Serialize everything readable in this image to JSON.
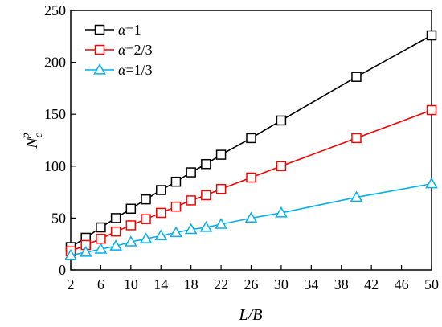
{
  "chart_data": {
    "type": "line",
    "xlabel": "L/B",
    "ylabel": {
      "base": "N",
      "sup": "p",
      "sub": "c"
    },
    "xlim": [
      2,
      50
    ],
    "ylim": [
      0,
      250
    ],
    "xticks": [
      2,
      6,
      10,
      14,
      18,
      22,
      26,
      30,
      34,
      38,
      42,
      46,
      50
    ],
    "yticks": [
      0,
      50,
      100,
      150,
      200,
      250
    ],
    "grid": false,
    "legend_position": "top-left",
    "x": [
      2,
      4,
      6,
      8,
      10,
      12,
      14,
      16,
      18,
      20,
      22,
      26,
      30,
      40,
      50
    ],
    "series": [
      {
        "name_parts": [
          "α",
          "=1"
        ],
        "color": "#000000",
        "marker": "square",
        "values": [
          22,
          31,
          41,
          50,
          59,
          68,
          77,
          85,
          94,
          102,
          111,
          127,
          144,
          186,
          226
        ]
      },
      {
        "name_parts": [
          "α",
          "=2/3"
        ],
        "color": "#ff0000",
        "marker": "square",
        "values": [
          18,
          24,
          30,
          37,
          43,
          49,
          55,
          61,
          67,
          72,
          78,
          89,
          100,
          127,
          154
        ]
      },
      {
        "name_parts": [
          "α",
          "=1/3"
        ],
        "color": "#00b0f0",
        "marker": "triangle",
        "values": [
          14,
          17,
          20,
          23,
          27,
          30,
          33,
          36,
          39,
          41,
          44,
          50,
          55,
          70,
          83
        ]
      }
    ]
  }
}
